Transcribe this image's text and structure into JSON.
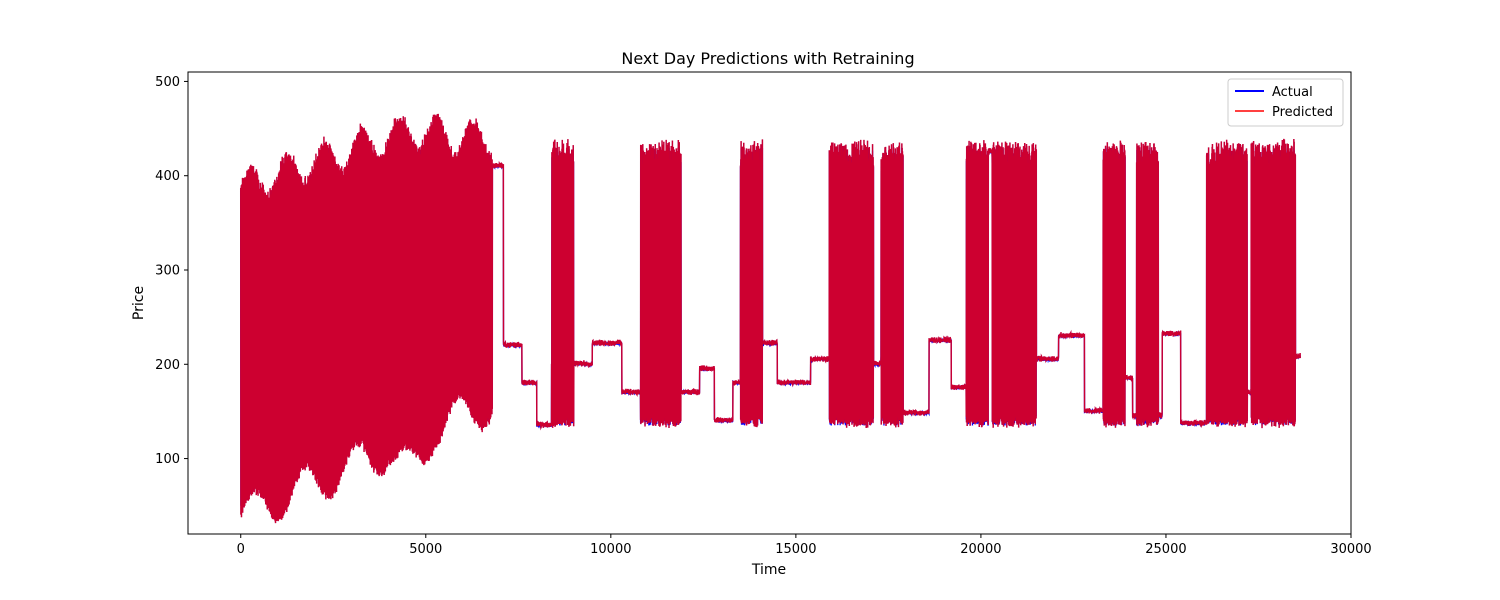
{
  "chart_data": {
    "type": "line",
    "title": "Next Day Predictions with Retraining",
    "xlabel": "Time",
    "ylabel": "Price",
    "xlim": [
      -1425,
      30000
    ],
    "ylim": [
      20,
      510
    ],
    "xticks": [
      0,
      5000,
      10000,
      15000,
      20000,
      25000,
      30000
    ],
    "yticks": [
      100,
      200,
      300,
      400,
      500
    ],
    "xtick_labels": [
      "0",
      "5000",
      "10000",
      "15000",
      "20000",
      "25000",
      "30000"
    ],
    "ytick_labels": [
      "100",
      "200",
      "300",
      "400",
      "500"
    ],
    "grid": false,
    "legend_position": "top-right",
    "n_points": 28630,
    "colors": {
      "actual": "#0000ff",
      "predicted": "#ff0000",
      "overlap": "#b3004b"
    },
    "series": [
      {
        "name": "Actual",
        "color": "#0000ff",
        "description_points": [
          [
            0,
            48
          ],
          [
            0,
            370
          ],
          [
            2000,
            430
          ],
          [
            4500,
            468
          ],
          [
            6800,
            425
          ],
          [
            6800,
            140
          ],
          [
            7100,
            405
          ],
          [
            7600,
            220
          ],
          [
            9000,
            135
          ],
          [
            11000,
            410
          ],
          [
            12000,
            170
          ],
          [
            14000,
            145
          ],
          [
            16000,
            425
          ],
          [
            17500,
            145
          ],
          [
            19500,
            428
          ],
          [
            21000,
            140
          ],
          [
            22500,
            230
          ],
          [
            24000,
            145
          ],
          [
            25500,
            136
          ],
          [
            26500,
            420
          ],
          [
            28000,
            424
          ],
          [
            28630,
            140
          ]
        ]
      },
      {
        "name": "Predicted",
        "color": "#ff0000",
        "description_points": [
          [
            0,
            45
          ],
          [
            0,
            380
          ],
          [
            2000,
            445
          ],
          [
            4600,
            488
          ],
          [
            6800,
            440
          ],
          [
            6800,
            137
          ],
          [
            7100,
            410
          ],
          [
            7600,
            225
          ],
          [
            9000,
            133
          ],
          [
            11000,
            428
          ],
          [
            12000,
            172
          ],
          [
            13700,
            437
          ],
          [
            16000,
            440
          ],
          [
            17500,
            143
          ],
          [
            19500,
            438
          ],
          [
            21000,
            138
          ],
          [
            22500,
            232
          ],
          [
            24000,
            443
          ],
          [
            25500,
            145
          ],
          [
            26300,
            444
          ],
          [
            27800,
            444
          ],
          [
            28400,
            170
          ]
        ]
      }
    ]
  }
}
